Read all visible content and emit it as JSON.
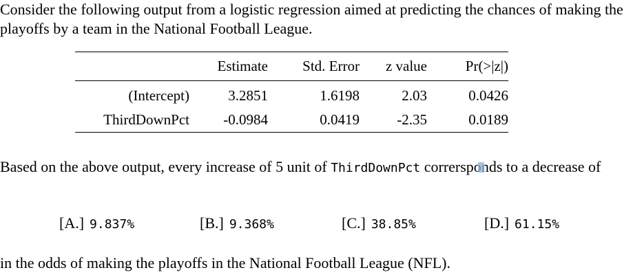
{
  "intro_text": "Consider the following output from a logistic regression aimed at predicting the chances of making the playoffs by a team in the National Football League.",
  "table": {
    "headers": [
      "",
      "Estimate",
      "Std. Error",
      "z value",
      "Pr(>|z|)"
    ],
    "rows": [
      [
        "(Intercept)",
        "3.2851",
        "1.6198",
        "2.03",
        "0.0426"
      ],
      [
        "ThirdDownPct",
        "-0.0984",
        "0.0419",
        "-2.35",
        "0.0189"
      ]
    ]
  },
  "question": {
    "text_before": "Based on the above output, every increase of 5 unit of",
    "variable": "ThirdDownPct",
    "text_mid": "correrspo",
    "text_after": "nds to a decrease of"
  },
  "options": [
    {
      "label": "[A.]",
      "value": "9.837%"
    },
    {
      "label": "[B.]",
      "value": "9.368%"
    },
    {
      "label": "[C.]",
      "value": "38.85%"
    },
    {
      "label": "[D.]",
      "value": "61.15%"
    }
  ],
  "closing_text": "in the odds of making the playoffs in the National Football League (NFL)."
}
